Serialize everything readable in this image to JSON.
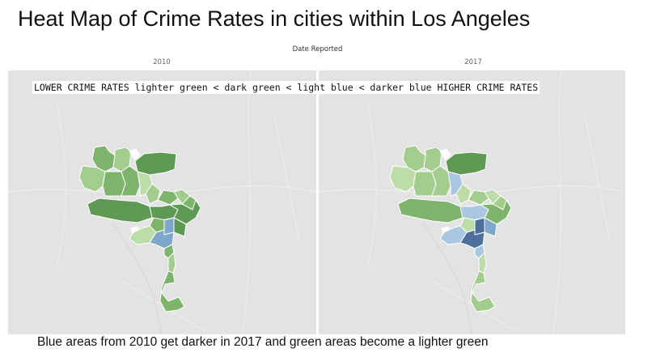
{
  "title": "Heat Map of Crime Rates in cities within Los Angeles",
  "column_header": "Date Reported",
  "panels": [
    {
      "year": "2010"
    },
    {
      "year": "2017"
    }
  ],
  "legend_note": "LOWER CRIME RATES lighter green < dark green < light blue < darker blue HIGHER CRIME RATES",
  "caption": "Blue areas from 2010 get darker in 2017 and green areas become a lighter green",
  "colors": {
    "background": "#e3e3e3",
    "lighter_green": "#bcdca8",
    "light_green": "#a3cd8e",
    "mid_green": "#7fb46c",
    "dark_green": "#5f9a54",
    "light_blue": "#a9c7e0",
    "mid_blue": "#7fa7cc",
    "darker_blue": "#4e6f9c"
  }
}
